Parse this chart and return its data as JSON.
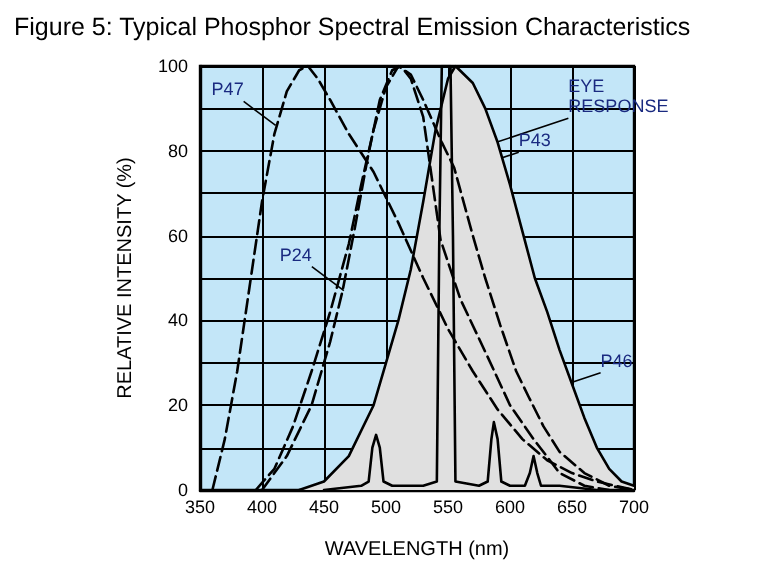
{
  "chart_data": {
    "type": "line",
    "title": "Figure 5: Typical Phosphor Spectral Emission Characteristics",
    "xlabel": "WAVELENGTH (nm)",
    "ylabel": "RELATIVE INTENSITY (%)",
    "xlim": [
      350,
      700
    ],
    "xticks": [
      350,
      400,
      450,
      500,
      550,
      600,
      650,
      700
    ],
    "ylim": [
      0,
      100
    ],
    "yticks": [
      0,
      {
        "value": 10,
        "label": null
      },
      20,
      {
        "value": 30,
        "label": null
      },
      40,
      {
        "value": 50,
        "label": null
      },
      60,
      {
        "value": 70,
        "label": null
      },
      80,
      {
        "value": 90,
        "label": null
      },
      100
    ],
    "grid": true,
    "marker": "none",
    "series": [
      {
        "type": "area",
        "color": "#e0e0e0",
        "line_style": "solid",
        "x": [
          430,
          450,
          470,
          490,
          500,
          510,
          520,
          530,
          540,
          550,
          556,
          570,
          580,
          590,
          600,
          610,
          620,
          630,
          640,
          650,
          660,
          670,
          680,
          690,
          700
        ],
        "values": [
          0,
          2,
          8,
          20,
          30,
          40,
          52,
          68,
          85,
          97,
          100,
          96,
          90,
          82,
          72,
          61,
          50,
          42,
          33,
          25,
          17,
          10,
          5,
          2,
          1
        ]
      },
      {
        "color": "#000000",
        "line_style": "dashed",
        "x": [
          360,
          370,
          380,
          390,
          400,
          410,
          420,
          430,
          437,
          445,
          455,
          470,
          490,
          510,
          530,
          550,
          570,
          590,
          610,
          630,
          650,
          670,
          700
        ],
        "values": [
          0,
          12,
          28,
          48,
          68,
          84,
          94,
          99,
          100,
          97,
          92,
          84,
          75,
          63,
          50,
          38,
          28,
          19,
          12,
          7,
          4,
          2,
          0
        ]
      },
      {
        "color": "#000000",
        "line_style": "dashed",
        "x": [
          400,
          420,
          440,
          455,
          465,
          475,
          485,
          495,
          505,
          512,
          520,
          530,
          544,
          560,
          581,
          600,
          619,
          640,
          660,
          680
        ],
        "values": [
          0,
          8,
          20,
          35,
          47,
          62,
          78,
          92,
          99,
          100,
          97,
          88,
          59,
          45,
          32,
          20,
          12,
          4,
          1,
          0
        ]
      },
      {
        "color": "#000000",
        "line_style": "solid",
        "x": [
          450,
          480,
          486,
          489,
          492,
          495,
          498,
          505,
          530,
          541,
          543,
          545,
          552,
          554,
          556,
          575,
          582,
          585,
          587,
          590,
          593,
          600,
          612,
          616,
          619,
          622,
          625,
          640,
          670,
          700
        ],
        "values": [
          0,
          1,
          2,
          10,
          13,
          10,
          2,
          1,
          1,
          2,
          60,
          100,
          100,
          60,
          2,
          1,
          2,
          12,
          16,
          12,
          2,
          1,
          1,
          4,
          8,
          4,
          1,
          1,
          0,
          0
        ]
      },
      {
        "color": "#000000",
        "line_style": "dashed",
        "x": [
          395,
          410,
          425,
          440,
          455,
          470,
          480,
          490,
          500,
          510,
          520,
          530,
          545,
          555,
          570,
          580,
          592,
          605,
          615,
          627,
          640,
          660,
          680,
          700
        ],
        "values": [
          0,
          5,
          15,
          28,
          42,
          58,
          72,
          85,
          95,
          100,
          98,
          92,
          82,
          76,
          60,
          50,
          39,
          28,
          22,
          15,
          9,
          4,
          1,
          0
        ]
      }
    ],
    "annotations": [
      {
        "text": "P47",
        "x": 411,
        "y": 86
      },
      {
        "text": "P24",
        "x": 466,
        "y": 47
      },
      {
        "text": "EYE RESPONSE",
        "x": 589,
        "y": 82
      },
      {
        "text": "P43",
        "x": 549,
        "y": 74
      },
      {
        "text": "P46",
        "x": 615,
        "y": 22
      }
    ]
  }
}
